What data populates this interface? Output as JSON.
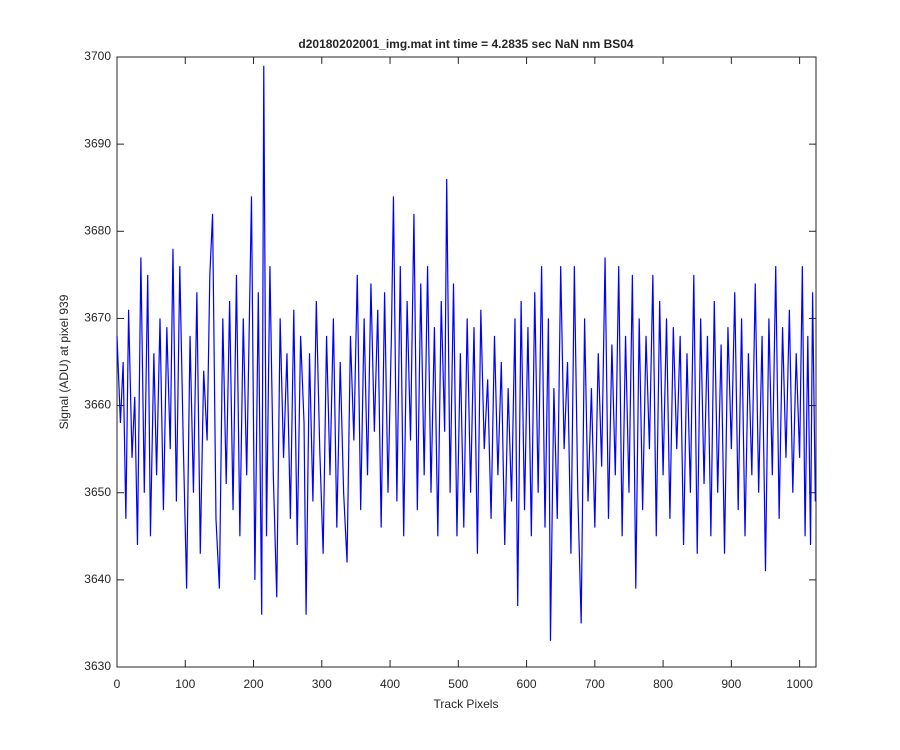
{
  "chart_data": {
    "type": "line",
    "title": "d20180202001_img.mat int time = 4.2835 sec  NaN nm BS04",
    "x_label": "Track Pixels",
    "y_label": "Signal (ADU) at pixel 939",
    "xlim": [
      0,
      1024
    ],
    "ylim": [
      3630,
      3700
    ],
    "xticks": [
      0,
      100,
      200,
      300,
      400,
      500,
      600,
      700,
      800,
      900,
      1000
    ],
    "yticks": [
      3630,
      3640,
      3650,
      3660,
      3670,
      3680,
      3690,
      3700
    ],
    "grid": false,
    "series": [
      {
        "color": "#0000ff",
        "x": [
          0,
          5,
          9,
          13,
          17,
          22,
          26,
          30,
          35,
          40,
          45,
          49,
          54,
          58,
          63,
          68,
          73,
          78,
          82,
          87,
          92,
          97,
          102,
          107,
          112,
          117,
          122,
          127,
          132,
          136,
          140,
          145,
          150,
          155,
          160,
          165,
          170,
          175,
          180,
          185,
          190,
          197,
          202,
          207,
          212,
          215,
          219,
          224,
          229,
          234,
          239,
          244,
          249,
          254,
          259,
          264,
          269,
          274,
          277,
          282,
          287,
          292,
          297,
          302,
          307,
          312,
          317,
          322,
          327,
          332,
          337,
          342,
          347,
          352,
          357,
          362,
          367,
          372,
          377,
          382,
          387,
          392,
          397,
          402,
          405,
          410,
          415,
          420,
          425,
          430,
          435,
          440,
          445,
          450,
          455,
          460,
          465,
          470,
          475,
          480,
          483,
          488,
          493,
          498,
          503,
          508,
          513,
          518,
          523,
          528,
          533,
          538,
          543,
          548,
          553,
          558,
          563,
          568,
          573,
          578,
          583,
          587,
          592,
          597,
          602,
          607,
          612,
          617,
          622,
          627,
          632,
          635,
          640,
          645,
          650,
          655,
          660,
          665,
          670,
          675,
          680,
          685,
          690,
          695,
          700,
          705,
          710,
          715,
          720,
          725,
          730,
          735,
          740,
          745,
          750,
          755,
          760,
          765,
          770,
          775,
          780,
          785,
          790,
          795,
          800,
          805,
          810,
          815,
          820,
          825,
          830,
          835,
          840,
          845,
          850,
          855,
          860,
          865,
          870,
          875,
          880,
          885,
          890,
          895,
          900,
          905,
          910,
          915,
          920,
          925,
          930,
          935,
          940,
          945,
          950,
          955,
          960,
          965,
          970,
          975,
          980,
          985,
          990,
          995,
          1000,
          1004,
          1008,
          1012,
          1016,
          1019,
          1023
        ],
        "values": [
          3668,
          3658,
          3665,
          3647,
          3671,
          3654,
          3661,
          3644,
          3677,
          3650,
          3675,
          3645,
          3666,
          3652,
          3670,
          3648,
          3669,
          3655,
          3678,
          3649,
          3676,
          3656,
          3639,
          3668,
          3650,
          3673,
          3643,
          3664,
          3656,
          3675,
          3682,
          3647,
          3639,
          3670,
          3651,
          3672,
          3648,
          3675,
          3645,
          3670,
          3652,
          3684,
          3640,
          3673,
          3636,
          3699,
          3645,
          3676,
          3652,
          3638,
          3670,
          3654,
          3666,
          3647,
          3671,
          3644,
          3668,
          3658,
          3636,
          3666,
          3649,
          3672,
          3655,
          3643,
          3668,
          3652,
          3670,
          3646,
          3665,
          3650,
          3642,
          3668,
          3656,
          3675,
          3648,
          3670,
          3652,
          3674,
          3657,
          3671,
          3646,
          3673,
          3650,
          3668,
          3684,
          3649,
          3676,
          3645,
          3672,
          3656,
          3682,
          3648,
          3674,
          3652,
          3676,
          3650,
          3669,
          3645,
          3672,
          3657,
          3686,
          3650,
          3674,
          3645,
          3666,
          3646,
          3670,
          3650,
          3669,
          3643,
          3671,
          3655,
          3663,
          3647,
          3668,
          3652,
          3665,
          3644,
          3662,
          3649,
          3670,
          3637,
          3672,
          3648,
          3669,
          3645,
          3673,
          3650,
          3676,
          3646,
          3670,
          3633,
          3662,
          3647,
          3676,
          3655,
          3665,
          3643,
          3676,
          3650,
          3635,
          3670,
          3649,
          3662,
          3646,
          3666,
          3653,
          3677,
          3647,
          3667,
          3652,
          3676,
          3645,
          3668,
          3650,
          3675,
          3639,
          3670,
          3648,
          3668,
          3655,
          3675,
          3645,
          3672,
          3652,
          3670,
          3647,
          3669,
          3655,
          3668,
          3644,
          3666,
          3650,
          3675,
          3643,
          3670,
          3651,
          3668,
          3645,
          3672,
          3650,
          3667,
          3643,
          3669,
          3655,
          3673,
          3648,
          3670,
          3645,
          3666,
          3652,
          3674,
          3650,
          3668,
          3641,
          3670,
          3652,
          3676,
          3647,
          3669,
          3654,
          3671,
          3650,
          3666,
          3654,
          3676,
          3645,
          3668,
          3644,
          3673,
          3649
        ]
      }
    ]
  }
}
